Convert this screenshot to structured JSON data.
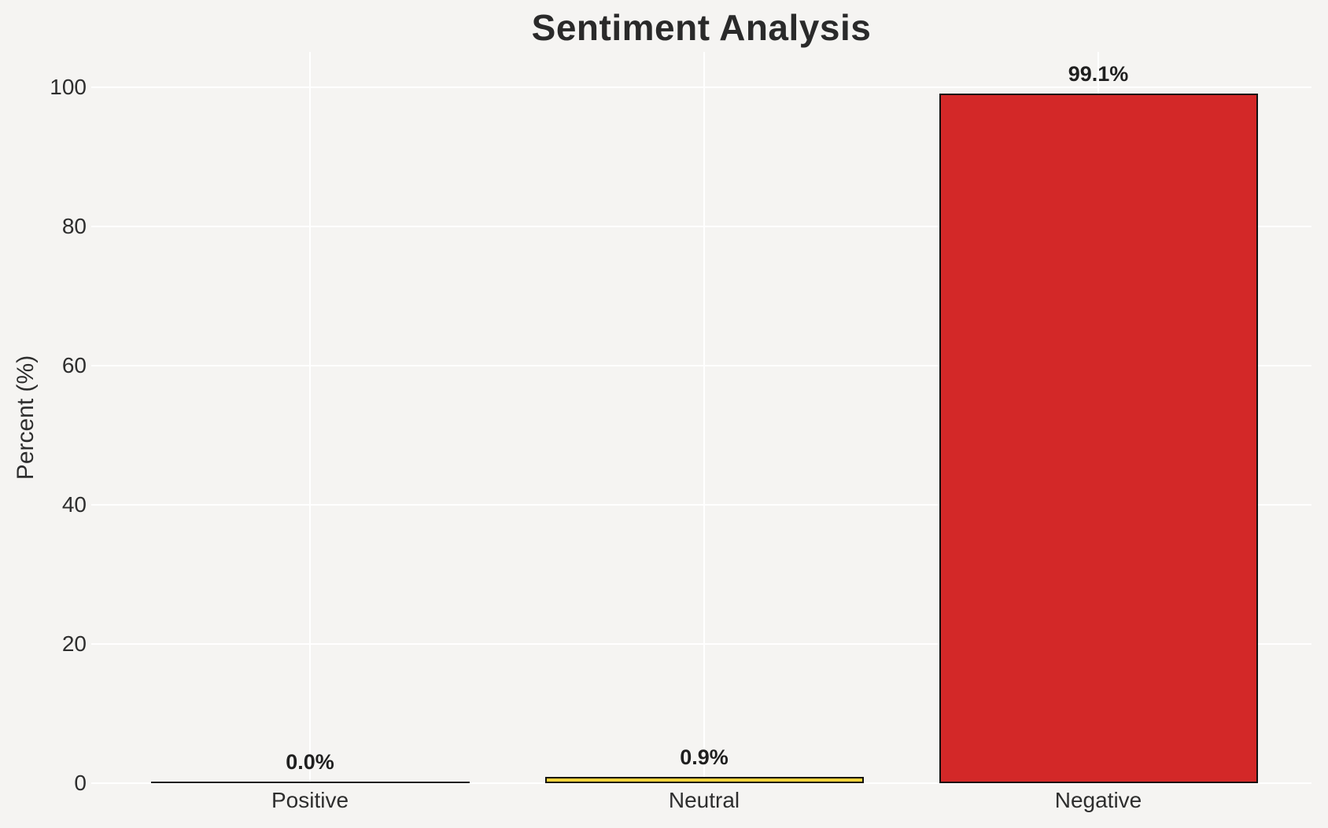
{
  "chart_data": {
    "type": "bar",
    "title": "Sentiment Analysis",
    "ylabel": "Percent (%)",
    "xlabel": "",
    "categories": [
      "Positive",
      "Neutral",
      "Negative"
    ],
    "values": [
      0.0,
      0.9,
      99.1
    ],
    "value_labels": [
      "0.0%",
      "0.9%",
      "99.1%"
    ],
    "bar_colors": [
      null,
      "#f3d33c",
      "#d32828"
    ],
    "bar_edge_color": "#111111",
    "yticks": [
      0,
      20,
      40,
      60,
      80,
      100
    ],
    "ylim": [
      0,
      105
    ],
    "grid": "on",
    "grid_color": "#ffffff",
    "background_color": "#f5f4f2",
    "legend": "none"
  }
}
